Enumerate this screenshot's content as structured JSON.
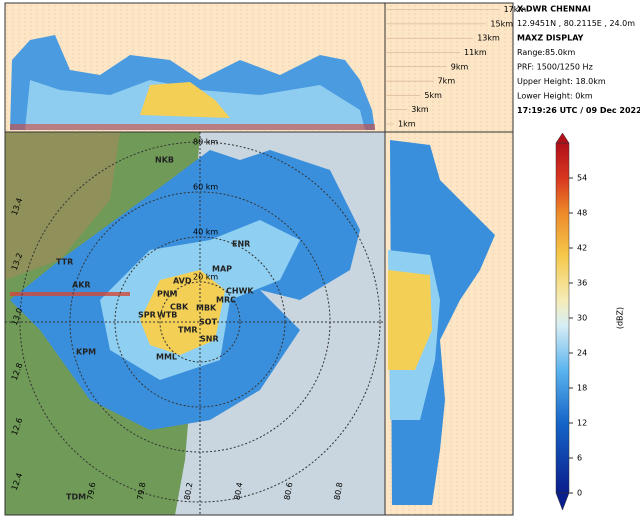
{
  "info": {
    "title": "X-DWR CHENNAI",
    "location": "12.9451N , 80.2115E , 24.0m",
    "product": "MAXZ DISPLAY",
    "range": "Range:85.0km",
    "prf": "PRF: 1500/1250 Hz",
    "upper": "Upper Height: 18.0km",
    "lower": "Lower Height: 0km",
    "time": "17:19:26 UTC / 09 Dec 2022"
  },
  "heights": [
    "1km",
    "3km",
    "5km",
    "7km",
    "9km",
    "11km",
    "13km",
    "15km",
    "17km"
  ],
  "stations": [
    "ENR",
    "MAP",
    "AVD",
    "PNM",
    "CBK",
    "WTB",
    "MBK",
    "MRC",
    "SPR",
    "TMR",
    "SOT",
    "SNR",
    "MML",
    "KPM",
    "AKR",
    "TTR",
    "TDM",
    "NKB",
    "CHWK"
  ],
  "lon_labels": [
    "80.2",
    "80.4",
    "80.6",
    "80.8",
    "79.6",
    "79.8"
  ],
  "lat_labels": [
    "13.4",
    "13.2",
    "13.0",
    "12.8",
    "12.6",
    "12.4"
  ],
  "ring_labels": [
    "80 km",
    "60 km",
    "40 km",
    "20 km"
  ],
  "colorbar": {
    "label": "(dBZ)",
    "lim": [
      0,
      60
    ],
    "ticks": [
      0,
      6,
      12,
      18,
      24,
      30,
      36,
      42,
      48,
      54
    ]
  }
}
